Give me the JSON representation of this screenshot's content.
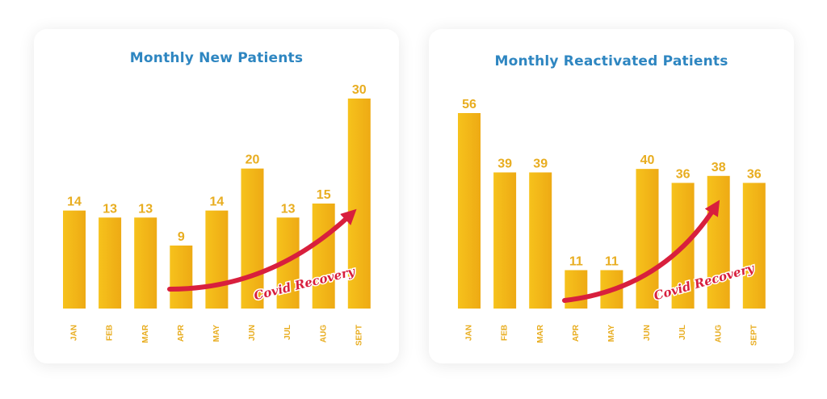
{
  "colors": {
    "bar": "#f2b519",
    "bar_shade": "#e8a712",
    "value_label": "#e8ad20",
    "title": "#2e86c1",
    "arrow": "#d81f3d"
  },
  "chart_data": [
    {
      "type": "bar",
      "title": "Monthly New Patients",
      "categories": [
        "JAN",
        "FEB",
        "MAR",
        "APR",
        "MAY",
        "JUN",
        "JUL",
        "AUG",
        "SEPT"
      ],
      "values": [
        14,
        13,
        13,
        9,
        14,
        20,
        13,
        15,
        30
      ],
      "data_labels": [
        "14",
        "13",
        "13",
        "9",
        "14",
        "20",
        "13",
        "15",
        "30"
      ],
      "annotation": "Covid Recovery",
      "grid": false,
      "legend": "none"
    },
    {
      "type": "bar",
      "title": "Monthly Reactivated Patients",
      "categories": [
        "JAN",
        "FEB",
        "MAR",
        "APR",
        "MAY",
        "JUN",
        "JUL",
        "AUG",
        "SEPT"
      ],
      "values": [
        56,
        39,
        39,
        11,
        11,
        40,
        36,
        38,
        36
      ],
      "data_labels": [
        "56",
        "39",
        "39",
        "11",
        "11",
        "40",
        "36",
        "38",
        "36"
      ],
      "annotation": "Covid Recovery",
      "grid": false,
      "legend": "none"
    }
  ]
}
